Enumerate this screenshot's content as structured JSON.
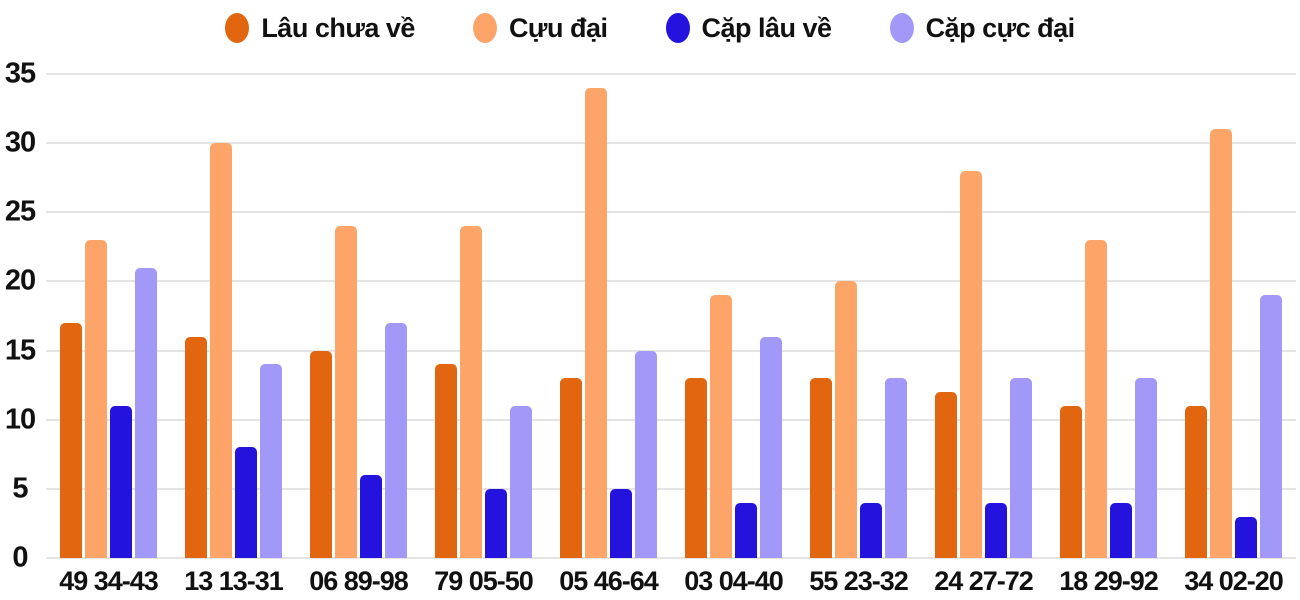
{
  "chart_data": {
    "type": "bar",
    "title": "",
    "xlabel": "",
    "ylabel": "",
    "ylim": [
      0,
      35
    ],
    "yticks": [
      0,
      5,
      10,
      15,
      20,
      25,
      30,
      35
    ],
    "grid": true,
    "legend_position": "top",
    "background": "#ffffff",
    "gridline_color": "#e4e4e4",
    "text_color": "#111111",
    "categories": [
      "49 34-43",
      "13 13-31",
      "06 89-98",
      "79 05-50",
      "05 46-64",
      "03 04-40",
      "55 23-32",
      "24 27-72",
      "18 29-92",
      "34 02-20"
    ],
    "series": [
      {
        "name": "Lâu chưa về",
        "color": "#E2650F",
        "values": [
          17,
          16,
          15,
          14,
          13,
          13,
          13,
          12,
          11,
          11
        ]
      },
      {
        "name": "Cựu đại",
        "color": "#FDA469",
        "values": [
          23,
          30,
          24,
          24,
          34,
          19,
          20,
          28,
          23,
          31
        ]
      },
      {
        "name": "Cặp lâu về",
        "color": "#2413DC",
        "values": [
          11,
          8,
          6,
          5,
          5,
          4,
          4,
          4,
          4,
          3
        ]
      },
      {
        "name": "Cặp cực đại",
        "color": "#A198F8",
        "values": [
          21,
          14,
          17,
          11,
          15,
          16,
          13,
          13,
          13,
          19
        ]
      }
    ]
  }
}
